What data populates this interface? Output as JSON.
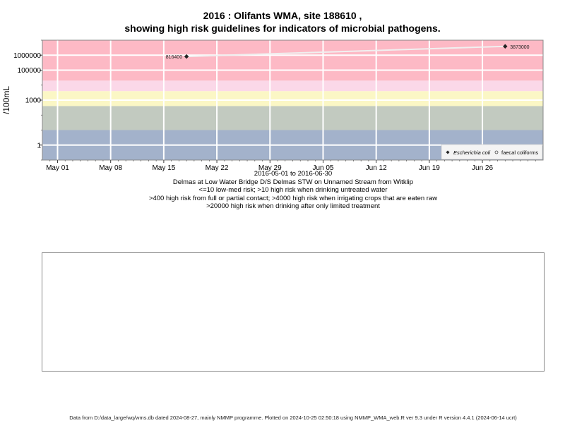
{
  "title_line1": "2016 : Olifants WMA, site 188610 ,",
  "title_line2": "showing high risk guidelines for indicators of microbial pathogens.",
  "captions": [
    "2016-05-01 to 2016-06-30",
    "Delmas at Low Water Bridge D/S Delmas STW on Unnamed Stream from Witklip",
    "<=10 low-med risk; >10 high risk when drinking untreated water",
    ">400 high risk from full or partial contact; >4000 high risk when irrigating crops that are eaten raw",
    ">20000 high risk when drinking after only limited treatment"
  ],
  "footer": "Data from D:/data_large/wq/wms.db dated 2024-08-27, mainly NMMP programme. Plotted on 2024-10-25 02:50:18 using NMMP_WMA_web.R ver 9.3 under R version 4.4.1 (2024-06-14 ucrt)",
  "colors": {
    "band_low": "#a3b2cb",
    "band_10_400": "#c2cac0",
    "band_400_4000": "#fbf7c5",
    "band_4000_20000": "#fbd8e8",
    "band_high": "#fdb9c5",
    "grid": "#ffffff",
    "trend": "#f0f0f0",
    "point": "#222222"
  },
  "chart_data": {
    "type": "scatter",
    "ylabel": "/100mL",
    "xlabel": "",
    "y_scale": "log10",
    "ylim": [
      0.1,
      10000000
    ],
    "xlim": [
      "2016-04-29",
      "2016-07-04"
    ],
    "x_ticks": [
      "May 01",
      "May 08",
      "May 15",
      "May 22",
      "May 29",
      "Jun 05",
      "Jun 12",
      "Jun 19",
      "Jun 26"
    ],
    "y_ticks": [
      "1",
      "1000",
      "100000",
      "1000000"
    ],
    "risk_bands": [
      {
        "min": 0.1,
        "max": 10,
        "color": "band_low"
      },
      {
        "min": 10,
        "max": 400,
        "color": "band_10_400"
      },
      {
        "min": 400,
        "max": 4000,
        "color": "band_400_4000"
      },
      {
        "min": 4000,
        "max": 20000,
        "color": "band_4000_20000"
      },
      {
        "min": 20000,
        "max": 10000000,
        "color": "band_high"
      }
    ],
    "series": [
      {
        "name": "Escherichia coli",
        "marker": "diamond",
        "points": [
          {
            "x": "2016-05-18",
            "y": 816400,
            "label": "816400"
          },
          {
            "x": "2016-06-29",
            "y": 3873000,
            "label": "3873000"
          }
        ]
      },
      {
        "name": "faecal coliforms",
        "marker": "circle",
        "points": []
      }
    ],
    "legend_position": "bottom-right"
  }
}
